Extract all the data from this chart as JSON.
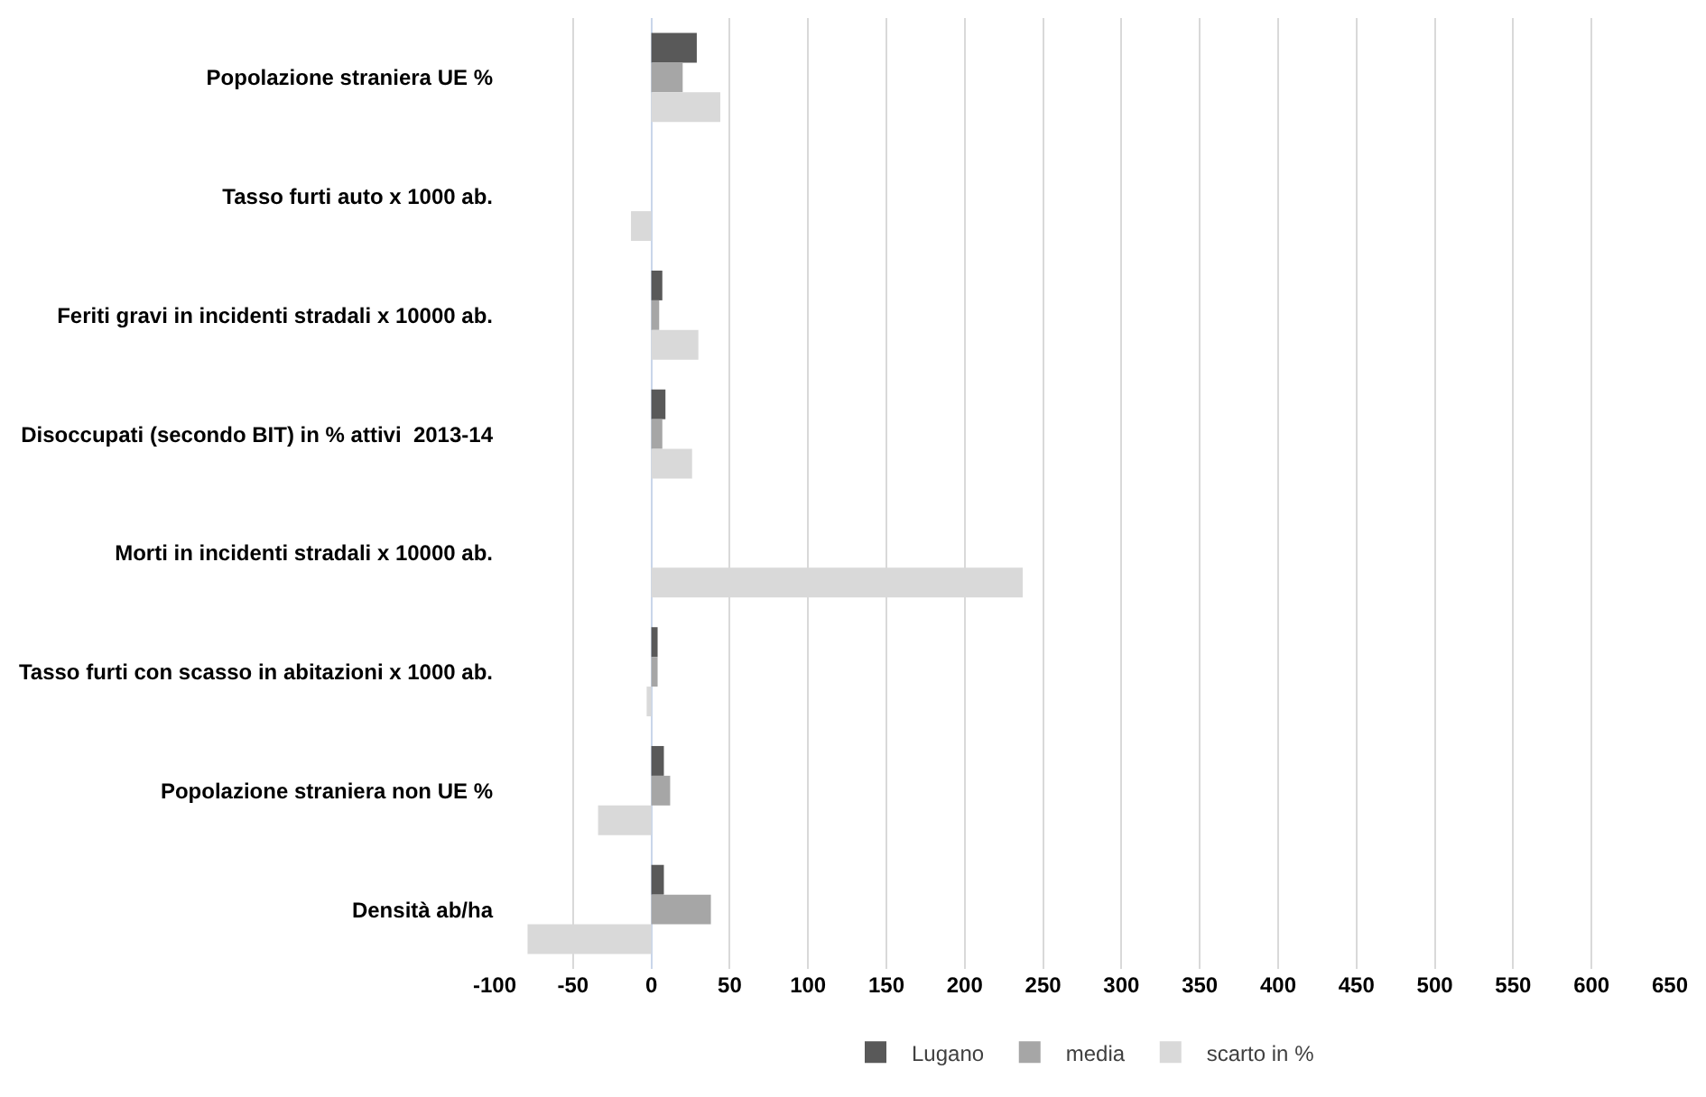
{
  "chart_data": {
    "type": "bar",
    "orientation": "horizontal",
    "categories": [
      "Popolazione straniera UE %",
      "Tasso furti auto x 1000 ab.",
      "Feriti gravi in incidenti stradali x 10000 ab.",
      "Disoccupati (secondo BIT) in % attivi  2013-14",
      "Morti in incidenti stradali x 10000 ab.",
      "Tasso furti con scasso in abitazioni x 1000 ab.",
      "Popolazione straniera non UE %",
      "Densità ab/ha"
    ],
    "series": [
      {
        "name": "Lugano",
        "color": "#595959",
        "values": [
          29,
          null,
          7,
          9,
          null,
          4,
          8,
          8
        ]
      },
      {
        "name": "media",
        "color": "#a6a6a6",
        "values": [
          20,
          null,
          5,
          7,
          null,
          4,
          12,
          38
        ]
      },
      {
        "name": "scarto in %",
        "color": "#d9d9d9",
        "values": [
          44,
          -13,
          30,
          26,
          237,
          -3,
          -34,
          -79
        ]
      }
    ],
    "xlim": [
      -100,
      650
    ],
    "xticks": [
      -100,
      -50,
      0,
      50,
      100,
      150,
      200,
      250,
      300,
      350,
      400,
      450,
      500,
      550,
      600,
      650
    ],
    "grid": "x",
    "legend": "bottom"
  }
}
